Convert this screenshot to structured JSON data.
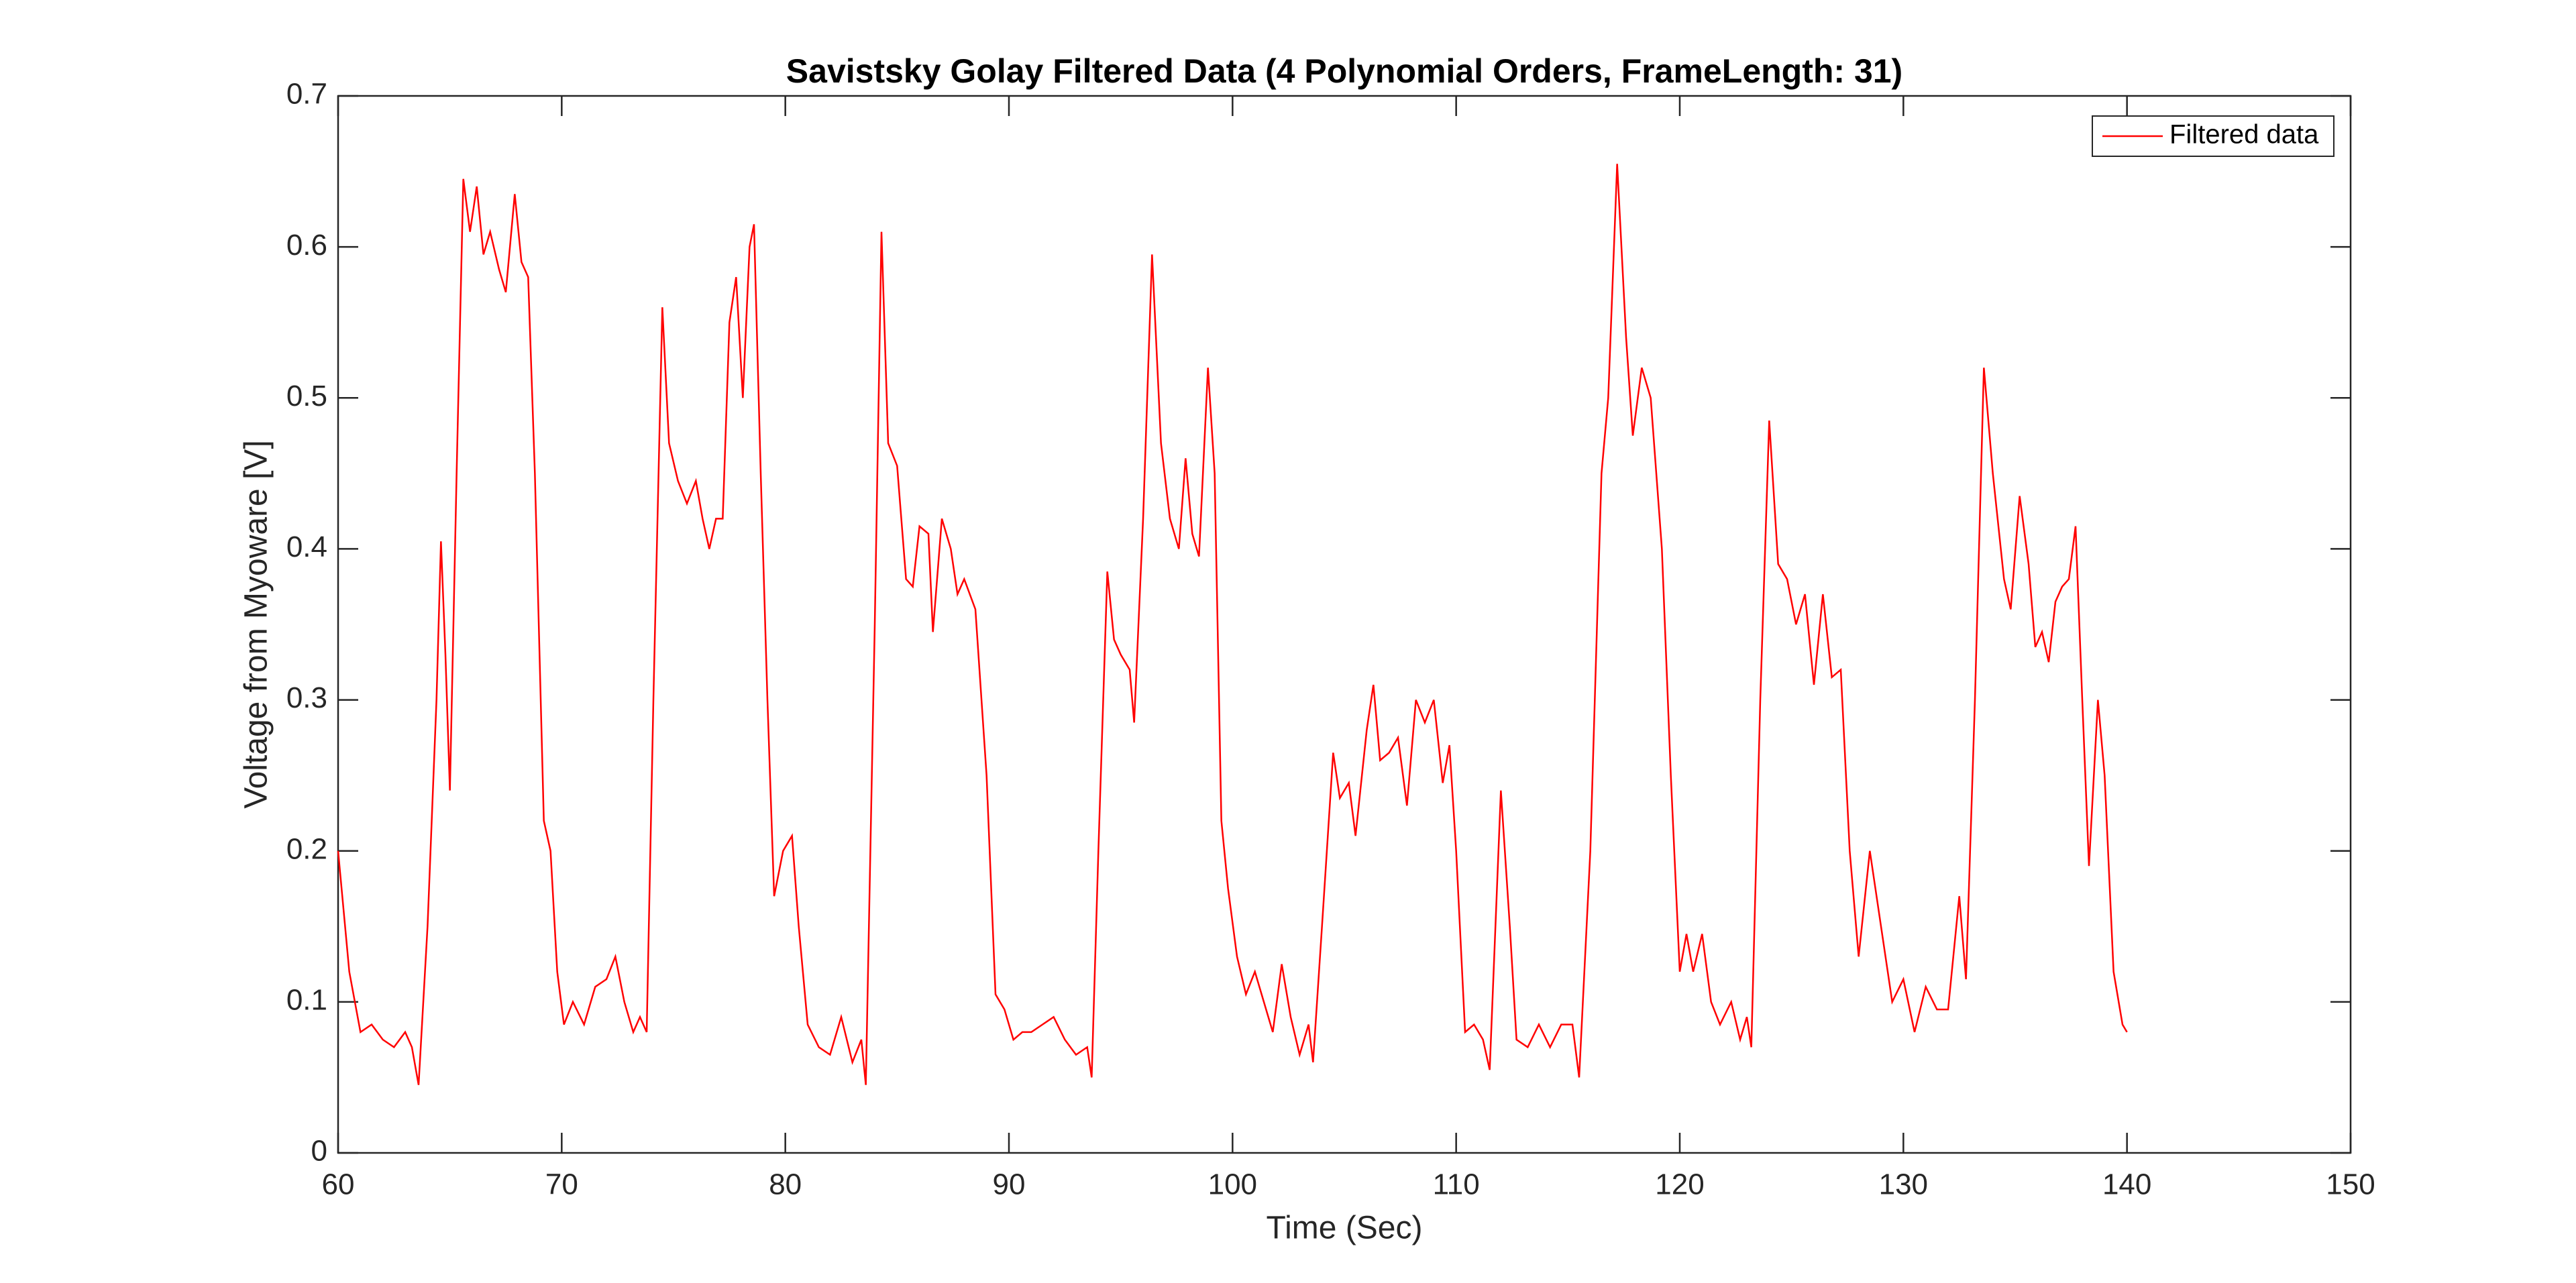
{
  "chart_data": {
    "type": "line",
    "title": "Savistsky Golay Filtered Data (4 Polynomial Orders, FrameLength: 31)",
    "xlabel": "Time (Sec)",
    "ylabel": "Voltage from Myoware [V]",
    "xlim": [
      60,
      150
    ],
    "xticks": [
      60,
      70,
      80,
      90,
      100,
      110,
      120,
      130,
      140,
      150
    ],
    "ylim": [
      0,
      0.7
    ],
    "yticks": [
      0,
      0.1,
      0.2,
      0.3,
      0.4,
      0.5,
      0.6,
      0.7
    ],
    "legend": "top-right",
    "series": [
      {
        "name": "Filtered data",
        "color": "#ff0000",
        "x": [
          60,
          60.5,
          61,
          61.5,
          62,
          62.5,
          63,
          63.3,
          63.6,
          64,
          64.4,
          64.6,
          64.8,
          65,
          65.3,
          65.6,
          65.9,
          66.2,
          66.5,
          66.8,
          67.2,
          67.5,
          67.9,
          68.2,
          68.5,
          68.8,
          69.2,
          69.5,
          69.8,
          70.1,
          70.5,
          71,
          71.5,
          72,
          72.4,
          72.8,
          73.2,
          73.5,
          73.8,
          74.1,
          74.5,
          74.8,
          75.2,
          75.6,
          76,
          76.3,
          76.6,
          76.9,
          77.2,
          77.5,
          77.8,
          78.1,
          78.4,
          78.6,
          78.9,
          79.2,
          79.5,
          79.9,
          80.3,
          80.6,
          81,
          81.5,
          82,
          82.5,
          83,
          83.4,
          83.6,
          84,
          84.3,
          84.6,
          85,
          85.4,
          85.7,
          86,
          86.4,
          86.6,
          87,
          87.4,
          87.7,
          88,
          88.5,
          89,
          89.4,
          89.8,
          90.2,
          90.6,
          91,
          91.5,
          92,
          92.5,
          93,
          93.5,
          93.7,
          94,
          94.4,
          94.7,
          95,
          95.4,
          95.6,
          96,
          96.4,
          96.8,
          97.2,
          97.6,
          97.9,
          98.2,
          98.5,
          98.9,
          99.2,
          99.5,
          99.8,
          100.2,
          100.6,
          101,
          101.4,
          101.8,
          102.2,
          102.6,
          103,
          103.4,
          103.6,
          104,
          104.5,
          104.8,
          105.2,
          105.5,
          106,
          106.3,
          106.6,
          107,
          107.4,
          107.8,
          108.2,
          108.6,
          109,
          109.4,
          109.7,
          110,
          110.4,
          110.8,
          111.2,
          111.5,
          112,
          112.4,
          112.7,
          113.2,
          113.7,
          114.2,
          114.7,
          115.2,
          115.5,
          116,
          116.5,
          116.8,
          117.2,
          117.6,
          117.9,
          118.3,
          118.7,
          119.2,
          119.6,
          120,
          120.3,
          120.6,
          121,
          121.4,
          121.8,
          122.3,
          122.7,
          123,
          123.2,
          123.6,
          124,
          124.4,
          124.8,
          125.2,
          125.6,
          126,
          126.4,
          126.8,
          127.2,
          127.6,
          128,
          128.5,
          129,
          129.5,
          130,
          130.5,
          131,
          131.5,
          132,
          132.5,
          132.8,
          133.2,
          133.6,
          134,
          134.5,
          134.8,
          135.2,
          135.6,
          135.9,
          136.2,
          136.5,
          136.8,
          137.1,
          137.4,
          137.7,
          138,
          138.3,
          138.7,
          139,
          139.4,
          139.8,
          140
        ],
        "values": [
          0.2,
          0.12,
          0.08,
          0.085,
          0.075,
          0.07,
          0.08,
          0.07,
          0.045,
          0.15,
          0.3,
          0.405,
          0.33,
          0.24,
          0.45,
          0.645,
          0.61,
          0.64,
          0.595,
          0.61,
          0.585,
          0.57,
          0.635,
          0.59,
          0.58,
          0.45,
          0.22,
          0.2,
          0.12,
          0.085,
          0.1,
          0.085,
          0.11,
          0.115,
          0.13,
          0.1,
          0.08,
          0.09,
          0.08,
          0.3,
          0.56,
          0.47,
          0.445,
          0.43,
          0.445,
          0.42,
          0.4,
          0.42,
          0.42,
          0.55,
          0.58,
          0.5,
          0.6,
          0.615,
          0.45,
          0.3,
          0.17,
          0.2,
          0.21,
          0.15,
          0.085,
          0.07,
          0.065,
          0.09,
          0.06,
          0.075,
          0.045,
          0.35,
          0.61,
          0.47,
          0.455,
          0.38,
          0.375,
          0.415,
          0.41,
          0.345,
          0.42,
          0.4,
          0.37,
          0.38,
          0.36,
          0.25,
          0.105,
          0.095,
          0.075,
          0.08,
          0.08,
          0.085,
          0.09,
          0.075,
          0.065,
          0.07,
          0.05,
          0.2,
          0.385,
          0.34,
          0.33,
          0.32,
          0.285,
          0.42,
          0.595,
          0.47,
          0.42,
          0.4,
          0.46,
          0.41,
          0.395,
          0.52,
          0.45,
          0.22,
          0.175,
          0.13,
          0.105,
          0.12,
          0.1,
          0.08,
          0.125,
          0.09,
          0.065,
          0.085,
          0.06,
          0.15,
          0.265,
          0.235,
          0.245,
          0.21,
          0.28,
          0.31,
          0.26,
          0.265,
          0.275,
          0.23,
          0.3,
          0.285,
          0.3,
          0.245,
          0.27,
          0.2,
          0.08,
          0.085,
          0.075,
          0.055,
          0.24,
          0.15,
          0.075,
          0.07,
          0.085,
          0.07,
          0.085,
          0.085,
          0.05,
          0.2,
          0.45,
          0.5,
          0.655,
          0.54,
          0.475,
          0.52,
          0.5,
          0.4,
          0.25,
          0.12,
          0.145,
          0.12,
          0.145,
          0.1,
          0.085,
          0.1,
          0.075,
          0.09,
          0.07,
          0.3,
          0.485,
          0.39,
          0.38,
          0.35,
          0.37,
          0.31,
          0.37,
          0.315,
          0.32,
          0.2,
          0.13,
          0.2,
          0.15,
          0.1,
          0.115,
          0.08,
          0.11,
          0.095,
          0.095,
          0.17,
          0.115,
          0.3,
          0.52,
          0.45,
          0.38,
          0.36,
          0.435,
          0.39,
          0.335,
          0.345,
          0.325,
          0.365,
          0.375,
          0.38,
          0.415,
          0.3,
          0.19,
          0.3,
          0.25,
          0.12,
          0.085,
          0.08
        ]
      }
    ]
  }
}
